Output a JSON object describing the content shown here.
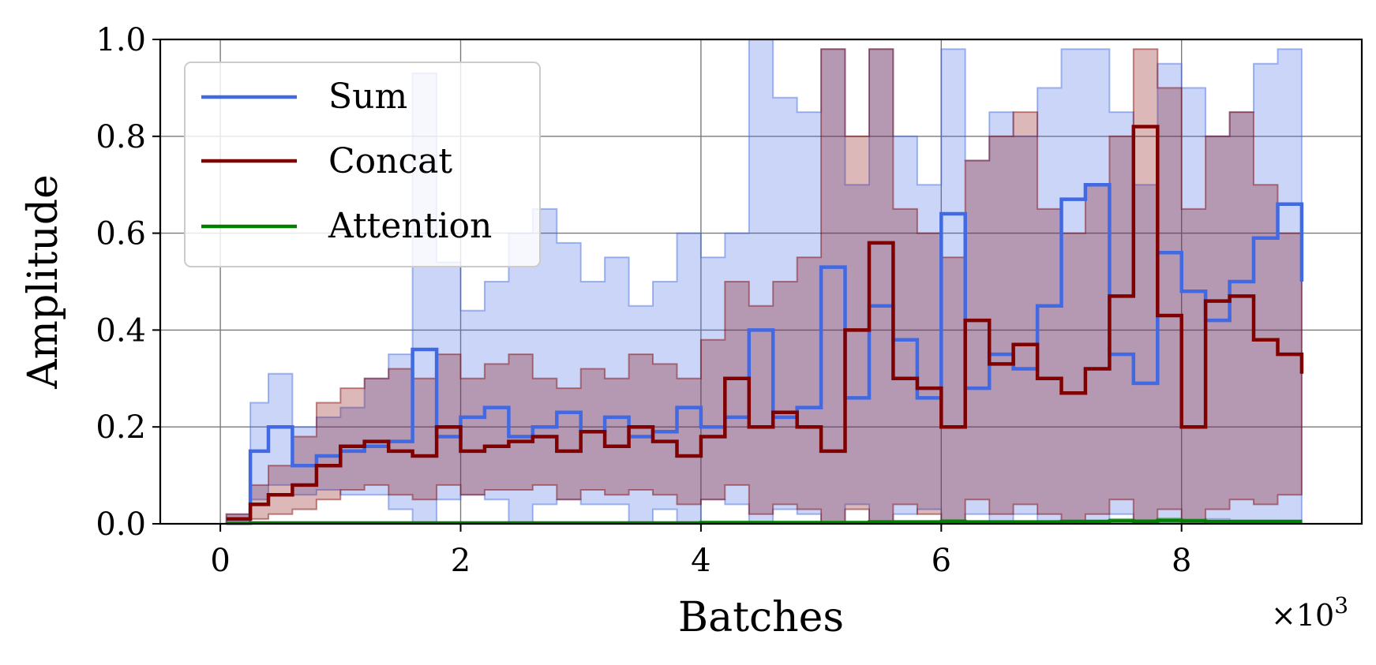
{
  "chart_data": {
    "type": "line",
    "title": "",
    "xlabel": "Batches",
    "ylabel": "Amplitude",
    "x_scale_label": "×10",
    "x_scale_exponent": "3",
    "xlim": [
      -0.5,
      9.5
    ],
    "ylim": [
      0.0,
      1.0
    ],
    "xticks": [
      0,
      2,
      4,
      6,
      8
    ],
    "xtick_labels": [
      "0",
      "2",
      "4",
      "6",
      "8"
    ],
    "yticks": [
      0.0,
      0.2,
      0.4,
      0.6,
      0.8,
      1.0
    ],
    "ytick_labels": [
      "0.0",
      "0.2",
      "0.4",
      "0.6",
      "0.8",
      "1.0"
    ],
    "grid": true,
    "legend_position": "top-left",
    "line_style": "step",
    "series": [
      {
        "name": "Sum",
        "color": "#4169e1",
        "x": [
          0.05,
          0.25,
          0.4,
          0.6,
          0.8,
          1.0,
          1.2,
          1.4,
          1.6,
          1.8,
          2.0,
          2.2,
          2.4,
          2.6,
          2.8,
          3.0,
          3.2,
          3.4,
          3.6,
          3.8,
          4.0,
          4.2,
          4.4,
          4.6,
          4.8,
          5.0,
          5.2,
          5.4,
          5.6,
          5.8,
          6.0,
          6.2,
          6.4,
          6.6,
          6.8,
          7.0,
          7.2,
          7.4,
          7.6,
          7.8,
          8.0,
          8.2,
          8.4,
          8.6,
          8.8,
          9.0
        ],
        "mean": [
          0.01,
          0.15,
          0.2,
          0.12,
          0.14,
          0.15,
          0.16,
          0.17,
          0.36,
          0.18,
          0.22,
          0.24,
          0.18,
          0.2,
          0.23,
          0.19,
          0.22,
          0.18,
          0.19,
          0.24,
          0.2,
          0.22,
          0.4,
          0.22,
          0.24,
          0.53,
          0.26,
          0.45,
          0.38,
          0.26,
          0.64,
          0.28,
          0.35,
          0.32,
          0.45,
          0.67,
          0.7,
          0.35,
          0.29,
          0.56,
          0.48,
          0.42,
          0.5,
          0.59,
          0.66,
          0.5
        ],
        "upper": [
          0.02,
          0.25,
          0.31,
          0.2,
          0.22,
          0.24,
          0.3,
          0.35,
          0.93,
          0.54,
          0.44,
          0.5,
          0.6,
          0.65,
          0.58,
          0.5,
          0.55,
          0.45,
          0.5,
          0.6,
          0.55,
          0.6,
          1.0,
          0.88,
          0.85,
          0.98,
          0.7,
          0.98,
          0.8,
          0.7,
          0.98,
          0.75,
          0.85,
          0.8,
          0.9,
          0.98,
          0.98,
          0.85,
          0.7,
          0.95,
          0.9,
          0.8,
          0.85,
          0.95,
          0.98,
          0.9
        ],
        "lower": [
          0.0,
          0.05,
          0.08,
          0.06,
          0.07,
          0.06,
          0.06,
          0.03,
          0.0,
          0.05,
          0.06,
          0.05,
          0.0,
          0.04,
          0.05,
          0.04,
          0.04,
          0.0,
          0.03,
          0.0,
          0.05,
          0.04,
          0.0,
          0.03,
          0.02,
          0.0,
          0.04,
          0.0,
          0.02,
          0.03,
          0.0,
          0.02,
          0.0,
          0.02,
          0.0,
          0.0,
          0.0,
          0.02,
          0.0,
          0.0,
          0.0,
          0.01,
          0.0,
          0.0,
          0.0,
          0.0
        ]
      },
      {
        "name": "Concat",
        "color": "#800000",
        "x": [
          0.05,
          0.25,
          0.4,
          0.6,
          0.8,
          1.0,
          1.2,
          1.4,
          1.6,
          1.8,
          2.0,
          2.2,
          2.4,
          2.6,
          2.8,
          3.0,
          3.2,
          3.4,
          3.6,
          3.8,
          4.0,
          4.2,
          4.4,
          4.6,
          4.8,
          5.0,
          5.2,
          5.4,
          5.6,
          5.8,
          6.0,
          6.2,
          6.4,
          6.6,
          6.8,
          7.0,
          7.2,
          7.4,
          7.6,
          7.8,
          8.0,
          8.2,
          8.4,
          8.6,
          8.8,
          9.0
        ],
        "mean": [
          0.01,
          0.04,
          0.06,
          0.08,
          0.12,
          0.16,
          0.17,
          0.15,
          0.14,
          0.2,
          0.15,
          0.16,
          0.17,
          0.18,
          0.15,
          0.19,
          0.16,
          0.2,
          0.17,
          0.14,
          0.18,
          0.3,
          0.2,
          0.23,
          0.2,
          0.15,
          0.4,
          0.58,
          0.3,
          0.28,
          0.2,
          0.42,
          0.33,
          0.37,
          0.3,
          0.27,
          0.32,
          0.47,
          0.82,
          0.43,
          0.2,
          0.46,
          0.47,
          0.38,
          0.35,
          0.31
        ],
        "upper": [
          0.02,
          0.08,
          0.12,
          0.18,
          0.25,
          0.28,
          0.3,
          0.32,
          0.3,
          0.35,
          0.3,
          0.33,
          0.35,
          0.3,
          0.28,
          0.32,
          0.3,
          0.35,
          0.33,
          0.3,
          0.38,
          0.5,
          0.45,
          0.5,
          0.55,
          0.98,
          0.8,
          0.98,
          0.65,
          0.6,
          0.55,
          0.75,
          0.8,
          0.85,
          0.65,
          0.6,
          0.7,
          0.8,
          0.98,
          0.9,
          0.65,
          0.8,
          0.85,
          0.7,
          0.6,
          0.55
        ],
        "lower": [
          0.0,
          0.01,
          0.02,
          0.03,
          0.05,
          0.07,
          0.08,
          0.06,
          0.05,
          0.08,
          0.06,
          0.07,
          0.07,
          0.08,
          0.05,
          0.07,
          0.06,
          0.07,
          0.06,
          0.04,
          0.05,
          0.08,
          0.02,
          0.04,
          0.03,
          0.0,
          0.03,
          0.0,
          0.04,
          0.02,
          0.0,
          0.05,
          0.02,
          0.04,
          0.02,
          0.0,
          0.02,
          0.05,
          0.0,
          0.03,
          0.0,
          0.03,
          0.05,
          0.04,
          0.06,
          0.08
        ]
      },
      {
        "name": "Attention",
        "color": "#008000",
        "x": [
          0.05,
          0.25,
          0.4,
          0.6,
          0.8,
          1.0,
          1.2,
          1.4,
          1.6,
          1.8,
          2.0,
          2.2,
          2.4,
          2.6,
          2.8,
          3.0,
          3.2,
          3.4,
          3.6,
          3.8,
          4.0,
          4.2,
          4.4,
          4.6,
          4.8,
          5.0,
          5.2,
          5.4,
          5.6,
          5.8,
          6.0,
          6.2,
          6.4,
          6.6,
          6.8,
          7.0,
          7.2,
          7.4,
          7.6,
          7.8,
          8.0,
          8.2,
          8.4,
          8.6,
          8.8,
          9.0
        ],
        "mean": [
          0.001,
          0.002,
          0.002,
          0.002,
          0.002,
          0.002,
          0.002,
          0.002,
          0.002,
          0.002,
          0.002,
          0.002,
          0.002,
          0.002,
          0.002,
          0.002,
          0.002,
          0.002,
          0.002,
          0.002,
          0.003,
          0.003,
          0.003,
          0.003,
          0.003,
          0.003,
          0.003,
          0.004,
          0.004,
          0.004,
          0.005,
          0.004,
          0.004,
          0.004,
          0.004,
          0.005,
          0.005,
          0.006,
          0.005,
          0.007,
          0.006,
          0.005,
          0.005,
          0.005,
          0.005,
          0.005
        ],
        "upper": [
          0.002,
          0.003,
          0.003,
          0.003,
          0.003,
          0.003,
          0.003,
          0.003,
          0.003,
          0.003,
          0.003,
          0.003,
          0.003,
          0.003,
          0.003,
          0.003,
          0.003,
          0.003,
          0.003,
          0.003,
          0.004,
          0.004,
          0.004,
          0.004,
          0.004,
          0.004,
          0.004,
          0.006,
          0.006,
          0.006,
          0.008,
          0.006,
          0.006,
          0.006,
          0.006,
          0.007,
          0.007,
          0.01,
          0.008,
          0.011,
          0.009,
          0.007,
          0.007,
          0.007,
          0.007,
          0.007
        ],
        "lower": [
          0.0,
          0.001,
          0.001,
          0.001,
          0.001,
          0.001,
          0.001,
          0.001,
          0.001,
          0.001,
          0.001,
          0.001,
          0.001,
          0.001,
          0.001,
          0.001,
          0.001,
          0.001,
          0.001,
          0.001,
          0.002,
          0.002,
          0.002,
          0.002,
          0.002,
          0.002,
          0.002,
          0.002,
          0.002,
          0.002,
          0.002,
          0.002,
          0.002,
          0.002,
          0.002,
          0.003,
          0.003,
          0.003,
          0.003,
          0.003,
          0.003,
          0.003,
          0.003,
          0.003,
          0.003,
          0.003
        ]
      }
    ]
  }
}
